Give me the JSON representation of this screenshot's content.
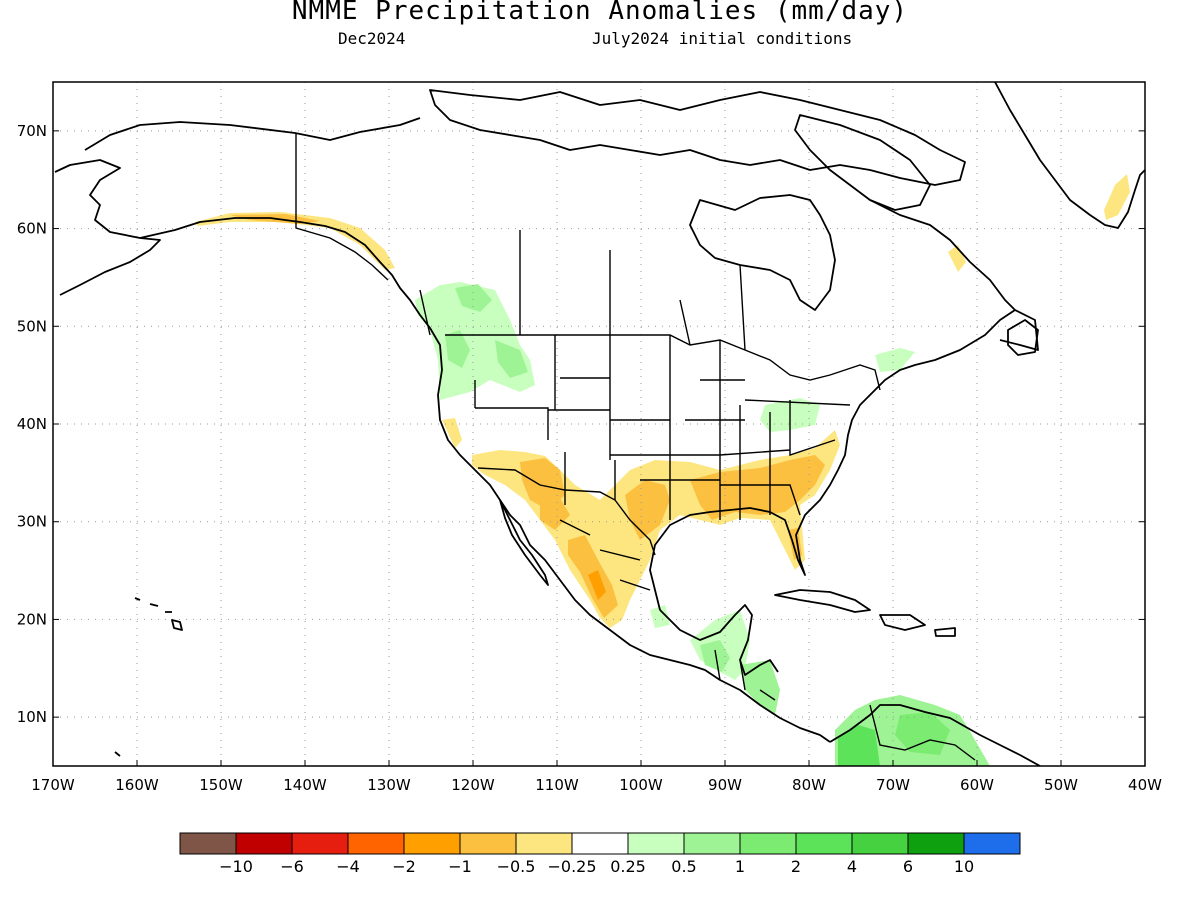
{
  "title": "NMME Precipitation Anomalies (mm/day)",
  "subtitle_left": "Dec2024",
  "subtitle_right": "July2024 initial conditions",
  "map": {
    "lon_min": -170,
    "lon_max": -40,
    "lat_min": 5,
    "lat_max": 75,
    "grid": "dotted",
    "lat_ticks": [
      {
        "value": 10,
        "label": "10N"
      },
      {
        "value": 20,
        "label": "20N"
      },
      {
        "value": 30,
        "label": "30N"
      },
      {
        "value": 40,
        "label": "40N"
      },
      {
        "value": 50,
        "label": "50N"
      },
      {
        "value": 60,
        "label": "60N"
      },
      {
        "value": 70,
        "label": "70N"
      }
    ],
    "lon_ticks": [
      {
        "value": -170,
        "label": "170W"
      },
      {
        "value": -160,
        "label": "160W"
      },
      {
        "value": -150,
        "label": "150W"
      },
      {
        "value": -140,
        "label": "140W"
      },
      {
        "value": -130,
        "label": "130W"
      },
      {
        "value": -120,
        "label": "120W"
      },
      {
        "value": -110,
        "label": "110W"
      },
      {
        "value": -100,
        "label": "100W"
      },
      {
        "value": -90,
        "label": "90W"
      },
      {
        "value": -80,
        "label": "80W"
      },
      {
        "value": -70,
        "label": "70W"
      },
      {
        "value": -60,
        "label": "60W"
      },
      {
        "value": -50,
        "label": "50W"
      },
      {
        "value": -40,
        "label": "40W"
      }
    ]
  },
  "colorbar": {
    "colors": [
      "#7f5548",
      "#c00000",
      "#e61e10",
      "#ff6400",
      "#ffa000",
      "#fcc040",
      "#fde680",
      "#ffffff",
      "#c8ffbe",
      "#9ef494",
      "#7ceb72",
      "#5ce35a",
      "#46d240",
      "#0fa00f",
      "#1e6eeb"
    ],
    "labels": [
      "−10",
      "−6",
      "−4",
      "−2",
      "−1",
      "−0.5",
      "−0.25",
      "0.25",
      "0.5",
      "1",
      "2",
      "4",
      "6",
      "10"
    ]
  }
}
